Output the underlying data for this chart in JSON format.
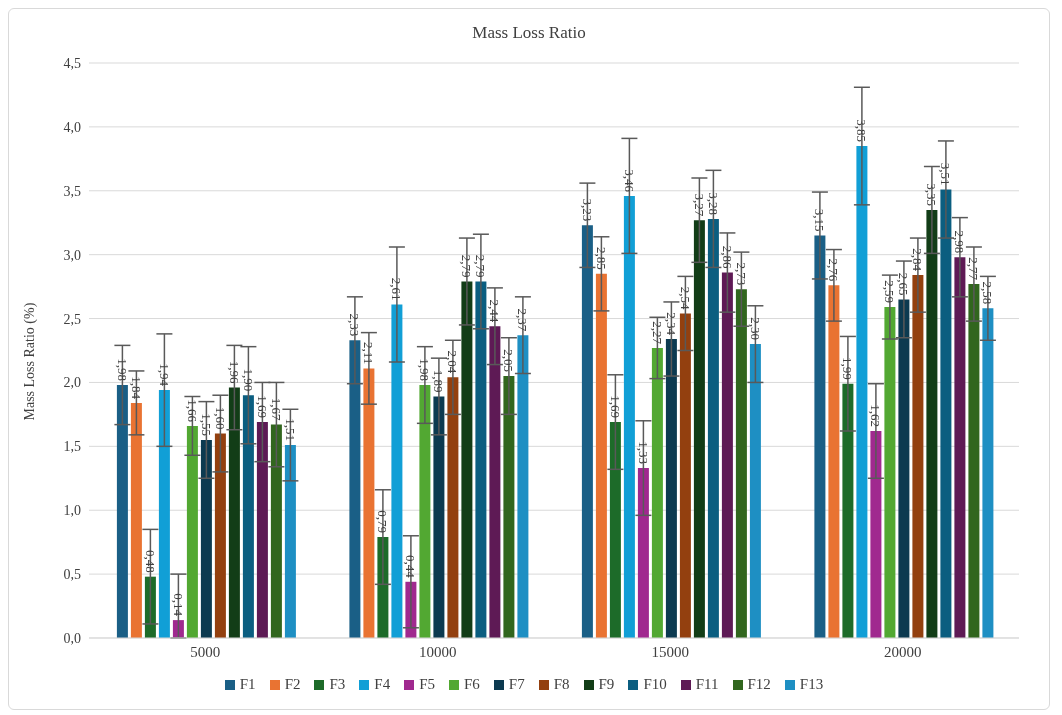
{
  "chart_data": {
    "type": "bar",
    "title": "Mass Loss Ratio",
    "ylabel": "Mass Loss Ratio (%)",
    "categories": [
      "5000",
      "10000",
      "15000",
      "20000"
    ],
    "ylim": [
      0,
      4.5
    ],
    "yticks": [
      {
        "value": 0,
        "label": "0,0"
      },
      {
        "value": 0.5,
        "label": "0,5"
      },
      {
        "value": 1,
        "label": "1,0"
      },
      {
        "value": 1.5,
        "label": "1,5"
      },
      {
        "value": 2,
        "label": "2,0"
      },
      {
        "value": 2.5,
        "label": "2,5"
      },
      {
        "value": 3,
        "label": "3,0"
      },
      {
        "value": 3.5,
        "label": "3,5"
      },
      {
        "value": 4,
        "label": "4,0"
      },
      {
        "value": 4.5,
        "label": "4,5"
      }
    ],
    "grid": "y",
    "legend": "bottom",
    "series": [
      {
        "name": "F1",
        "color": "#1a5f86",
        "values": [
          1.98,
          2.33,
          3.23,
          3.15
        ],
        "errors": [
          0.31,
          0.34,
          0.33,
          0.34
        ],
        "value_labels": [
          "1,98",
          "2,33",
          "3,23",
          "3,15"
        ]
      },
      {
        "name": "F2",
        "color": "#e97332",
        "values": [
          1.84,
          2.11,
          2.85,
          2.76
        ],
        "errors": [
          0.25,
          0.28,
          0.29,
          0.28
        ],
        "value_labels": [
          "1,84",
          "2,11",
          "2,85",
          "2,76"
        ]
      },
      {
        "name": "F3",
        "color": "#1d6b29",
        "values": [
          0.48,
          0.79,
          1.69,
          1.99
        ],
        "errors": [
          0.37,
          0.37,
          0.37,
          0.37
        ],
        "value_labels": [
          "0,48",
          "0,79",
          "1,69",
          "1,99"
        ]
      },
      {
        "name": "F4",
        "color": "#119fd6",
        "values": [
          1.94,
          2.61,
          3.46,
          3.85
        ],
        "errors": [
          0.44,
          0.45,
          0.45,
          0.46
        ],
        "value_labels": [
          "1,94",
          "2,61",
          "3,46",
          "3,85"
        ]
      },
      {
        "name": "F5",
        "color": "#a0298f",
        "values": [
          0.14,
          0.44,
          1.33,
          1.62
        ],
        "errors": [
          [
            0,
            0.5
          ],
          0.36,
          0.37,
          0.37
        ],
        "value_labels": [
          "0,14",
          "0,44",
          "1,33",
          "1,62"
        ]
      },
      {
        "name": "F6",
        "color": "#52a832",
        "values": [
          1.66,
          1.98,
          2.27,
          2.59
        ],
        "errors": [
          0.23,
          0.3,
          0.24,
          0.25
        ],
        "value_labels": [
          "1,66",
          "1,98",
          "2,27",
          "2,59"
        ]
      },
      {
        "name": "F7",
        "color": "#0c3a50",
        "values": [
          1.55,
          1.89,
          2.34,
          2.65
        ],
        "errors": [
          0.3,
          0.3,
          0.29,
          0.3
        ],
        "value_labels": [
          "1,55",
          "1,89",
          "2,34",
          "2,65"
        ]
      },
      {
        "name": "F8",
        "color": "#93400f",
        "values": [
          1.6,
          2.04,
          2.54,
          2.84
        ],
        "errors": [
          0.3,
          0.29,
          0.29,
          0.29
        ],
        "value_labels": [
          "1,60",
          "2,04",
          "2,54",
          "2,84"
        ]
      },
      {
        "name": "F9",
        "color": "#123d17",
        "values": [
          1.96,
          2.79,
          3.27,
          3.35
        ],
        "errors": [
          0.33,
          0.34,
          0.33,
          0.34
        ],
        "value_labels": [
          "1,96",
          "2,79",
          "3,27",
          "3,35"
        ]
      },
      {
        "name": "F10",
        "color": "#0b5e80",
        "values": [
          1.9,
          2.79,
          3.28,
          3.51
        ],
        "errors": [
          0.38,
          0.37,
          0.38,
          0.38
        ],
        "value_labels": [
          "1,90",
          "2,79",
          "3,28",
          "3,51"
        ]
      },
      {
        "name": "F11",
        "color": "#5e1a55",
        "values": [
          1.69,
          2.44,
          2.86,
          2.98
        ],
        "errors": [
          0.31,
          0.3,
          0.31,
          0.31
        ],
        "value_labels": [
          "1,69",
          "2,44",
          "2,86",
          "2,98"
        ]
      },
      {
        "name": "F12",
        "color": "#31661e",
        "values": [
          1.67,
          2.05,
          2.73,
          2.77
        ],
        "errors": [
          0.33,
          0.3,
          0.29,
          0.29
        ],
        "value_labels": [
          "1,67",
          "2,05",
          "2,73",
          "2,77"
        ]
      },
      {
        "name": "F13",
        "color": "#1e8fc3",
        "values": [
          1.51,
          2.37,
          2.3,
          2.58
        ],
        "errors": [
          0.28,
          0.3,
          0.3,
          0.25
        ],
        "value_labels": [
          "1,51",
          "2,37",
          "2,30",
          "2,58"
        ]
      }
    ]
  }
}
